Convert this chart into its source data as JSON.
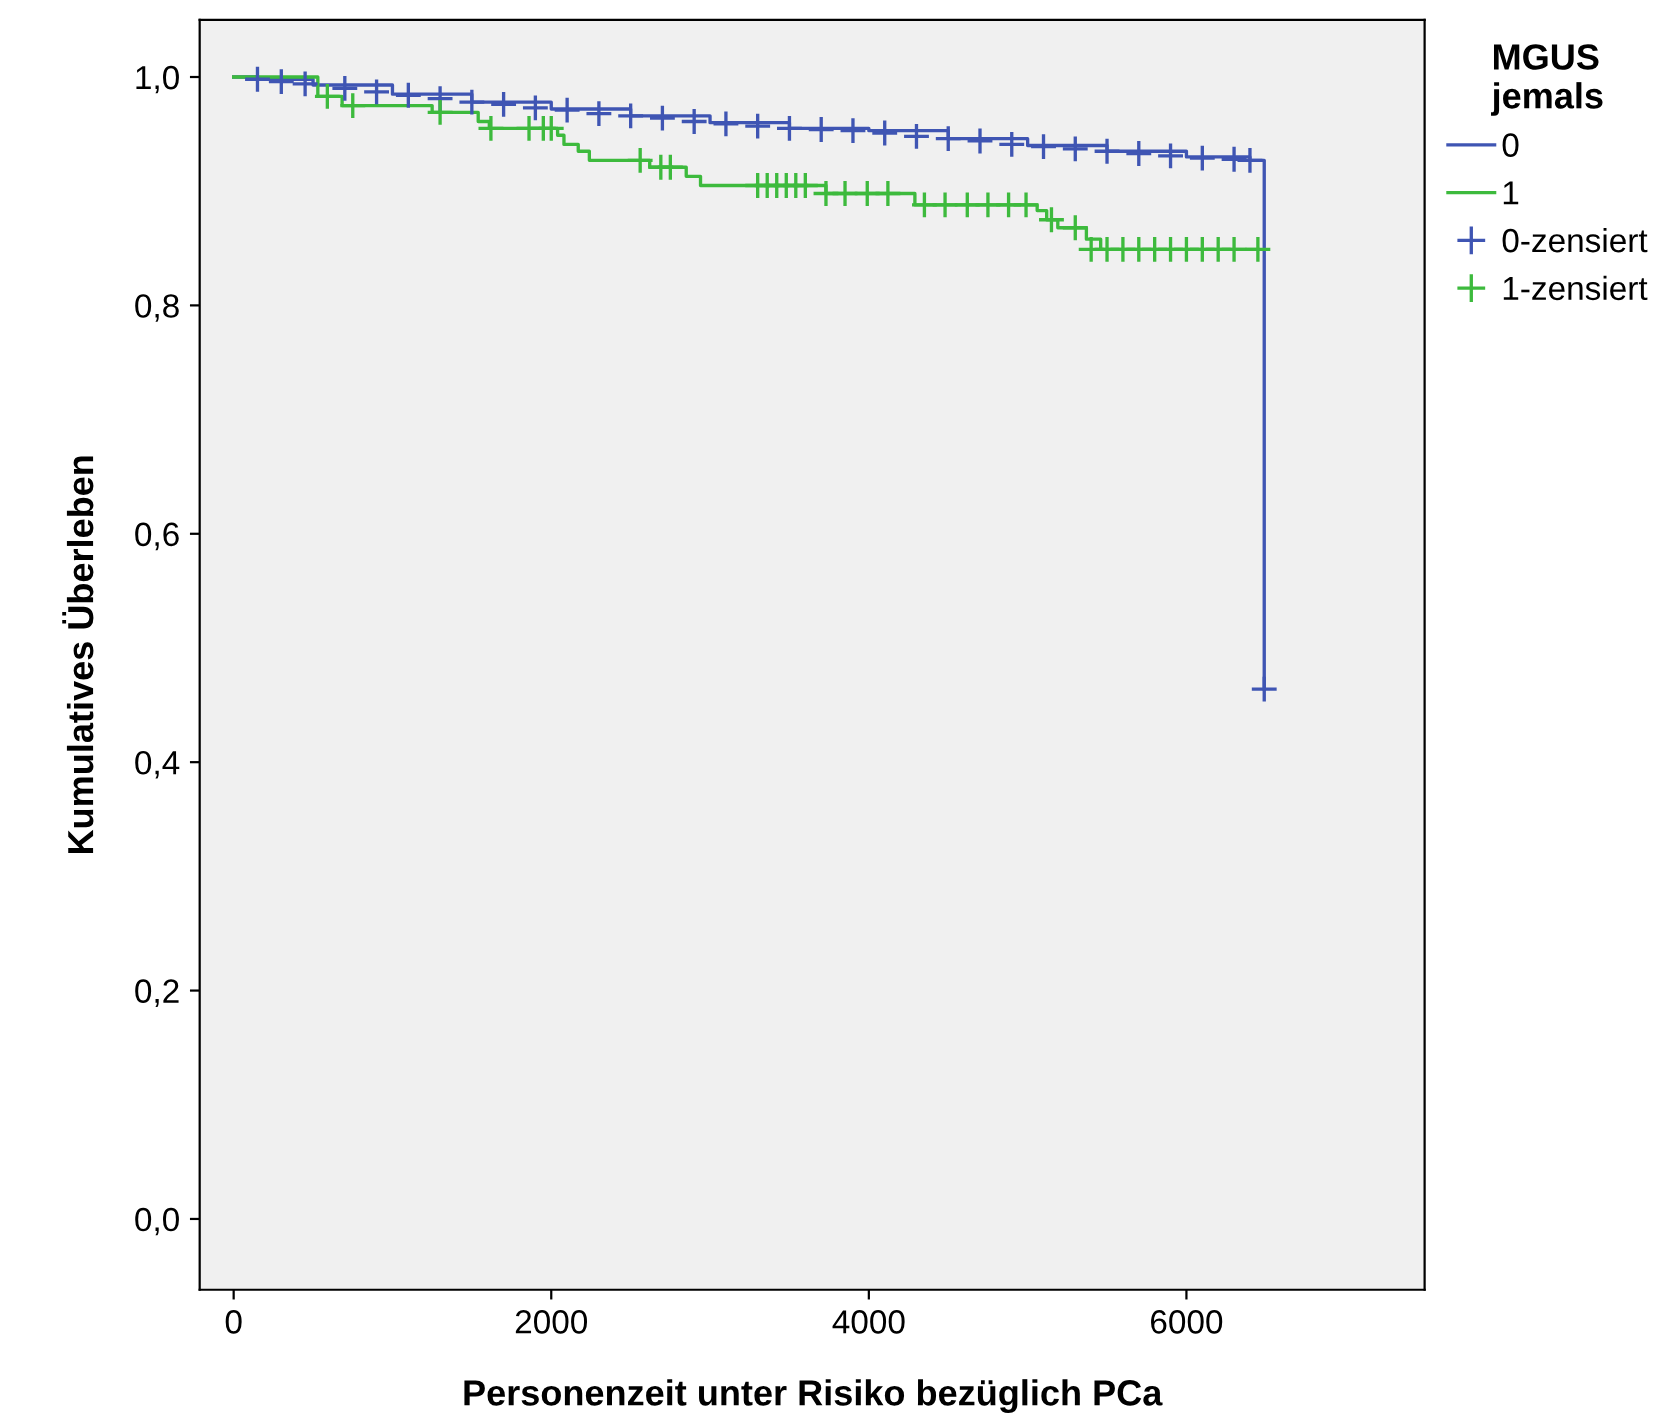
{
  "chart_data": {
    "type": "step",
    "xlabel": "Personenzeit unter Risiko bezüglich PCa",
    "ylabel": "Kumulatives Überleben",
    "legend_title": "MGUS\njemals",
    "xlim": [
      -214,
      7500
    ],
    "ylim": [
      -0.062,
      1.05
    ],
    "xticks": [
      0,
      2000,
      4000,
      6000
    ],
    "yticks": [
      {
        "value": 0,
        "label": "0,0"
      },
      {
        "value": 0.2,
        "label": "0,2"
      },
      {
        "value": 0.4,
        "label": "0,4"
      },
      {
        "value": 0.6,
        "label": "0,6"
      },
      {
        "value": 0.8,
        "label": "0,8"
      },
      {
        "value": 1.0,
        "label": "1,0"
      }
    ],
    "grid": false,
    "legend": "top right",
    "series": [
      {
        "name": "0",
        "color": "#3f55b3",
        "x": [
          0,
          150,
          500,
          1000,
          1500,
          2000,
          2500,
          3000,
          3500,
          4000,
          4500,
          5000,
          5500,
          6000,
          6400,
          6490
        ],
        "values": [
          1.0,
          0.998,
          0.993,
          0.985,
          0.978,
          0.972,
          0.966,
          0.96,
          0.955,
          0.953,
          0.946,
          0.94,
          0.935,
          0.93,
          0.927,
          0.464
        ]
      },
      {
        "name": "1",
        "color": "#3dba3d",
        "x": [
          0,
          530,
          683,
          1250,
          1540,
          1610,
          2040,
          2080,
          2170,
          2240,
          2620,
          2850,
          2940,
          3730,
          4290,
          5060,
          5120,
          5190,
          5370,
          5460,
          6450
        ],
        "values": [
          1.0,
          0.983,
          0.975,
          0.969,
          0.961,
          0.955,
          0.949,
          0.941,
          0.935,
          0.927,
          0.921,
          0.913,
          0.905,
          0.898,
          0.888,
          0.883,
          0.875,
          0.868,
          0.858,
          0.849,
          0.849
        ]
      },
      {
        "name": "0-zensiert",
        "type": "scatter",
        "marker": "cross",
        "color": "#3f55b3",
        "x": [
          150,
          300,
          450,
          700,
          900,
          1100,
          1300,
          1500,
          1700,
          1900,
          2100,
          2300,
          2500,
          2700,
          2900,
          3100,
          3300,
          3500,
          3700,
          3900,
          4100,
          4300,
          4500,
          4700,
          4900,
          5100,
          5300,
          5500,
          5700,
          5900,
          6100,
          6300,
          6400,
          6490
        ],
        "values": [
          0.998,
          0.996,
          0.994,
          0.99,
          0.987,
          0.984,
          0.981,
          0.978,
          0.976,
          0.973,
          0.971,
          0.968,
          0.966,
          0.964,
          0.961,
          0.959,
          0.957,
          0.955,
          0.954,
          0.953,
          0.951,
          0.948,
          0.946,
          0.944,
          0.941,
          0.939,
          0.937,
          0.935,
          0.933,
          0.931,
          0.929,
          0.928,
          0.927,
          0.464
        ]
      },
      {
        "name": "1-zensiert",
        "type": "scatter",
        "marker": "cross",
        "color": "#3dba3d",
        "x": [
          590,
          750,
          1300,
          1620,
          1860,
          1950,
          2000,
          2560,
          2690,
          2750,
          3300,
          3360,
          3420,
          3480,
          3540,
          3600,
          3730,
          3850,
          3990,
          4120,
          4350,
          4480,
          4620,
          4750,
          4880,
          4990,
          5150,
          5300,
          5400,
          5500,
          5600,
          5700,
          5800,
          5900,
          6000,
          6100,
          6200,
          6300,
          6450
        ],
        "values": [
          0.983,
          0.975,
          0.969,
          0.955,
          0.955,
          0.955,
          0.955,
          0.927,
          0.921,
          0.921,
          0.905,
          0.905,
          0.905,
          0.905,
          0.905,
          0.905,
          0.898,
          0.898,
          0.898,
          0.898,
          0.888,
          0.888,
          0.888,
          0.888,
          0.888,
          0.888,
          0.875,
          0.868,
          0.849,
          0.849,
          0.849,
          0.849,
          0.849,
          0.849,
          0.849,
          0.849,
          0.849,
          0.849,
          0.849
        ]
      }
    ]
  }
}
